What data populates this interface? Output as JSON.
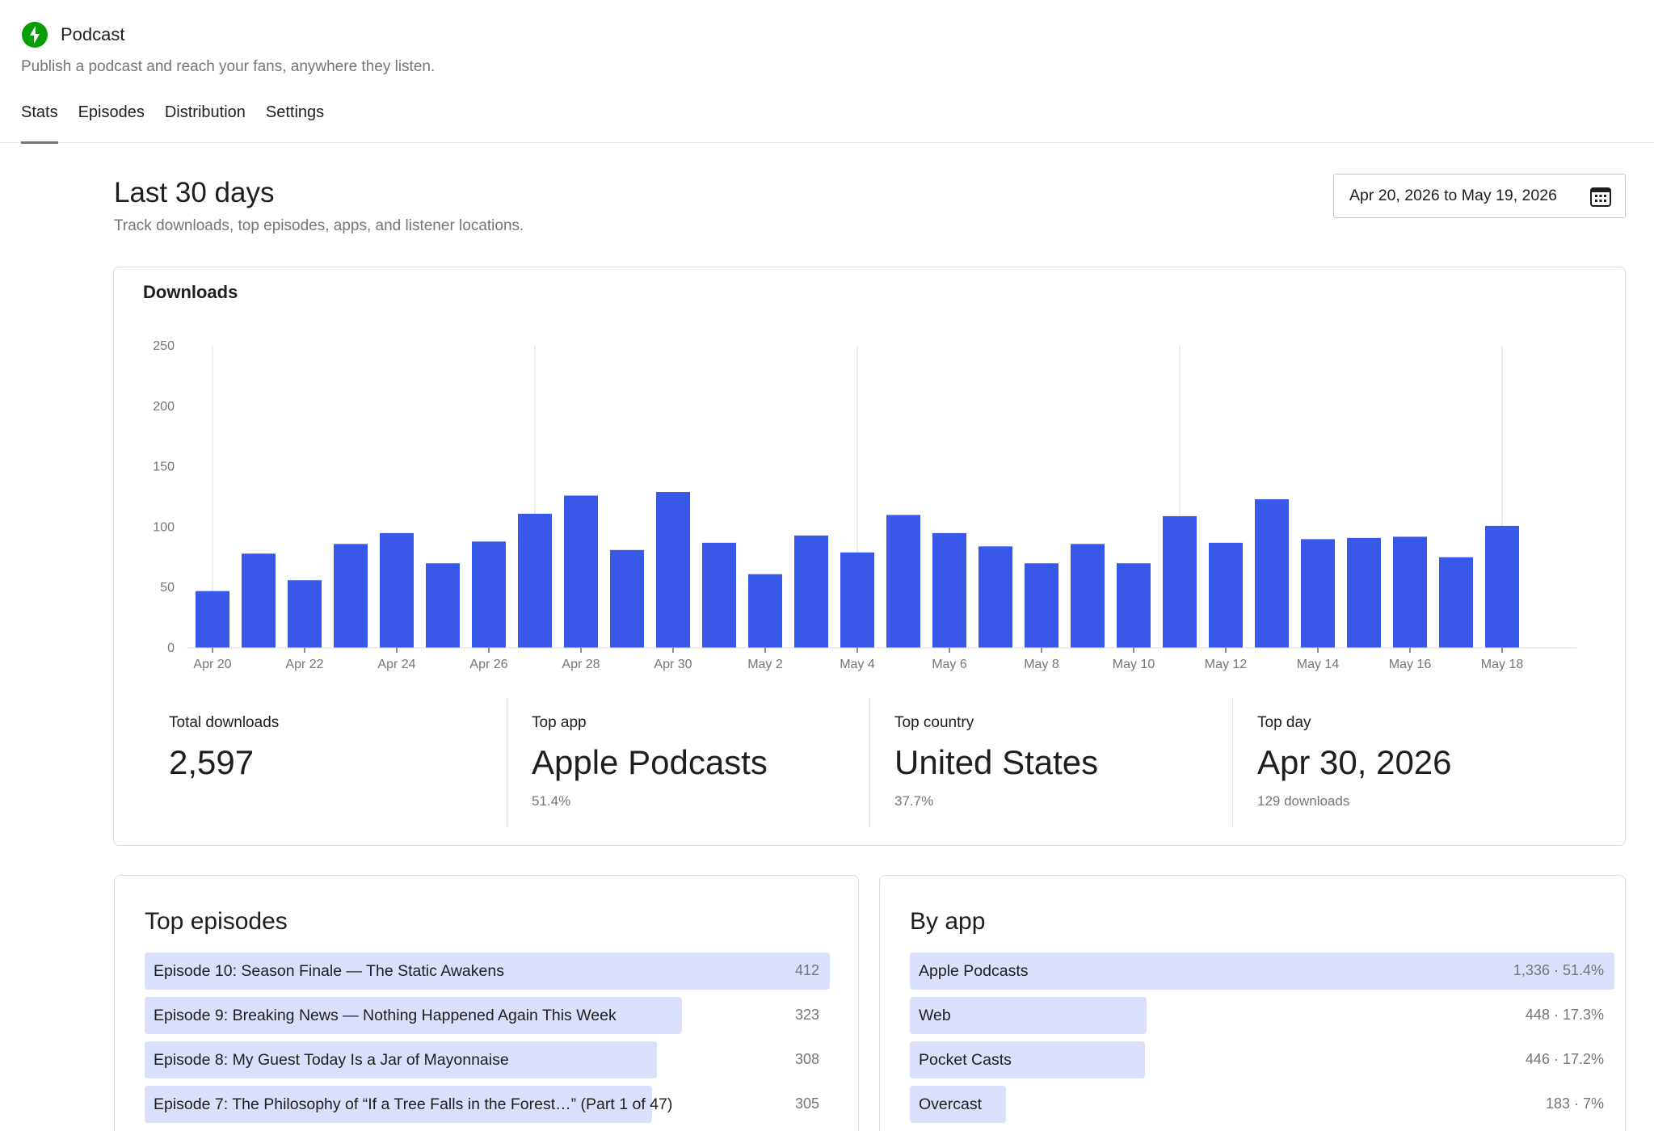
{
  "header": {
    "title": "Podcast",
    "subtitle": "Publish a podcast and reach your fans, anywhere they listen.",
    "tabs": [
      {
        "label": "Stats",
        "active": true
      },
      {
        "label": "Episodes",
        "active": false
      },
      {
        "label": "Distribution",
        "active": false
      },
      {
        "label": "Settings",
        "active": false
      }
    ]
  },
  "section": {
    "title": "Last 30 days",
    "subtitle": "Track downloads, top episodes, apps, and listener locations.",
    "date_range": "Apr 20, 2026 to May 19, 2026"
  },
  "downloads": {
    "title": "Downloads"
  },
  "chart_data": {
    "type": "bar",
    "title": "Downloads",
    "xlabel": "",
    "ylabel": "",
    "ylim": [
      0,
      250
    ],
    "yticks": [
      0,
      50,
      100,
      150,
      200,
      250
    ],
    "grid": false,
    "categories": [
      "Apr 20",
      "Apr 21",
      "Apr 22",
      "Apr 23",
      "Apr 24",
      "Apr 25",
      "Apr 26",
      "Apr 27",
      "Apr 28",
      "Apr 29",
      "Apr 30",
      "May 1",
      "May 2",
      "May 3",
      "May 4",
      "May 5",
      "May 6",
      "May 7",
      "May 8",
      "May 9",
      "May 10",
      "May 11",
      "May 12",
      "May 13",
      "May 14",
      "May 15",
      "May 16",
      "May 17",
      "May 18"
    ],
    "tick_labels": [
      "Apr 20",
      "Apr 22",
      "Apr 24",
      "Apr 26",
      "Apr 28",
      "Apr 30",
      "May 2",
      "May 4",
      "May 6",
      "May 8",
      "May 10",
      "May 12",
      "May 14",
      "May 16",
      "May 18"
    ],
    "marker_dates": [
      "Apr 20",
      "Apr 27",
      "May 4",
      "May 11",
      "May 18"
    ],
    "values": [
      47,
      78,
      56,
      86,
      95,
      70,
      88,
      111,
      126,
      81,
      129,
      87,
      61,
      93,
      79,
      110,
      95,
      84,
      70,
      86,
      70,
      109,
      87,
      123,
      90,
      91,
      92,
      75,
      101
    ],
    "color": "#3858e9"
  },
  "stats": [
    {
      "label": "Total downloads",
      "value": "2,597",
      "sub": ""
    },
    {
      "label": "Top app",
      "value": "Apple Podcasts",
      "sub": "51.4%"
    },
    {
      "label": "Top country",
      "value": "United States",
      "sub": "37.7%"
    },
    {
      "label": "Top day",
      "value": "Apr 30, 2026",
      "sub": "129 downloads"
    }
  ],
  "top_episodes": {
    "title": "Top episodes",
    "items": [
      {
        "label": "Episode 10: Season Finale — The Static Awakens",
        "value": "412",
        "fraction": 1.0
      },
      {
        "label": "Episode 9: Breaking News — Nothing Happened Again This Week",
        "value": "323",
        "fraction": 0.784
      },
      {
        "label": "Episode 8: My Guest Today Is a Jar of Mayonnaise",
        "value": "308",
        "fraction": 0.748
      },
      {
        "label": "Episode 7: The Philosophy of “If a Tree Falls in the Forest…” (Part 1 of 47)",
        "value": "305",
        "fraction": 0.74
      }
    ]
  },
  "by_app": {
    "title": "By app",
    "items": [
      {
        "label": "Apple Podcasts",
        "value": "1,336 · 51.4%",
        "fraction": 1.0
      },
      {
        "label": "Web",
        "value": "448 · 17.3%",
        "fraction": 0.336
      },
      {
        "label": "Pocket Casts",
        "value": "446 · 17.2%",
        "fraction": 0.334
      },
      {
        "label": "Overcast",
        "value": "183 · 7%",
        "fraction": 0.137
      }
    ]
  }
}
